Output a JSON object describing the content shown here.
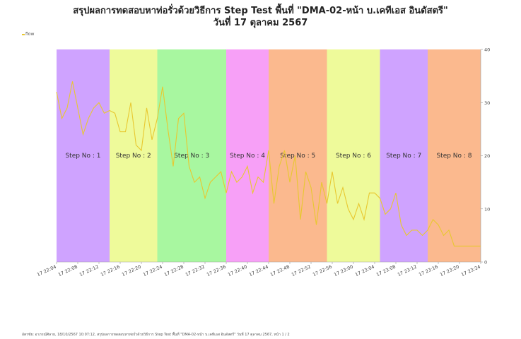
{
  "header": {
    "title_line1": "สรุปผลการทดสอบหาท่อรั่วด้วยวิธีการ Step Test พื้นที่ \"DMA-02-หน้า บ.เคทีเอส อินดัสตรี\"",
    "title_line2": "วันที่ 17 ตุลาคม 2567"
  },
  "footer": {
    "text": "อัตรชัย: อาภรณ์ศิลาย, 18/10/2567 10:07:12, สรุปผลการทดสอบหาท่อรั่วด้วยวิธีการ Step Test พื้นที่ \"DMA-02-หน้า บ.เคทีเอส อินดัสตรี\" วันที่ 17 ตุลาคม 2567, หน้า 1 / 2"
  },
  "colors": {
    "line": "#e8c830",
    "step_violet": "#cfa3ff",
    "step_lime": "#eefa9a",
    "step_green": "#a8f7a0",
    "step_magenta": "#f7a0f7",
    "step_salmon": "#fbb98e",
    "axis_text": "#444444"
  },
  "chart_data": {
    "type": "line",
    "series": [
      {
        "name": "flow",
        "x": [
          "22:04",
          "22:05",
          "22:06",
          "22:07",
          "22:08",
          "22:09",
          "22:10",
          "22:11",
          "22:12",
          "22:13",
          "22:14",
          "22:15",
          "22:16",
          "22:17",
          "22:18",
          "22:19",
          "22:20",
          "22:21",
          "22:22",
          "22:23",
          "22:24",
          "22:25",
          "22:26",
          "22:27",
          "22:28",
          "22:29",
          "22:30",
          "22:31",
          "22:32",
          "22:33",
          "22:34",
          "22:35",
          "22:36",
          "22:37",
          "22:38",
          "22:39",
          "22:40",
          "22:41",
          "22:42",
          "22:43",
          "22:44",
          "22:45",
          "22:46",
          "22:47",
          "22:48",
          "22:49",
          "22:50",
          "22:51",
          "22:52",
          "22:53",
          "22:54",
          "22:55",
          "22:56",
          "22:57",
          "22:58",
          "22:59",
          "23:00",
          "23:01",
          "23:02",
          "23:03",
          "23:04",
          "23:05",
          "23:06",
          "23:07",
          "23:08",
          "23:09",
          "23:10",
          "23:11",
          "23:12",
          "23:13",
          "23:14",
          "23:15",
          "23:16",
          "23:17",
          "23:18",
          "23:19",
          "23:20",
          "23:21",
          "23:22",
          "23:23",
          "23:24"
        ],
        "values": [
          32,
          27,
          29,
          34,
          29,
          24,
          27,
          29,
          30,
          28,
          28.5,
          28,
          24.5,
          24.5,
          30,
          22,
          21,
          29,
          23,
          27,
          33,
          25,
          18,
          27,
          28,
          18,
          15,
          16,
          12,
          15,
          16,
          17,
          13,
          17,
          15,
          16,
          18,
          13,
          16,
          15,
          21,
          11,
          18,
          21,
          15,
          20,
          8,
          17,
          14,
          7,
          15,
          11,
          17,
          11,
          14,
          10,
          8,
          11,
          8,
          13,
          13,
          12,
          9,
          10,
          13,
          7,
          5,
          6,
          6,
          5,
          6,
          8,
          7,
          5,
          6,
          3,
          3,
          3,
          3,
          3,
          3
        ]
      }
    ],
    "steps": [
      {
        "label": "Step No : 1",
        "start": "22:04",
        "end": "22:14",
        "color": "#cfa3ff"
      },
      {
        "label": "Step No : 2",
        "start": "22:14",
        "end": "22:23",
        "color": "#eefa9a"
      },
      {
        "label": "Step No : 3",
        "start": "22:23",
        "end": "22:36",
        "color": "#a8f7a0"
      },
      {
        "label": "Step No : 4",
        "start": "22:36",
        "end": "22:44",
        "color": "#f7a0f7"
      },
      {
        "label": "Step No : 5",
        "start": "22:44",
        "end": "22:55",
        "color": "#fbb98e"
      },
      {
        "label": "Step No : 6",
        "start": "22:55",
        "end": "23:05",
        "color": "#eefa9a"
      },
      {
        "label": "Step No : 7",
        "start": "23:05",
        "end": "23:14",
        "color": "#cfa3ff"
      },
      {
        "label": "Step No : 8",
        "start": "23:14",
        "end": "23:24",
        "color": "#fbb98e"
      }
    ],
    "x_ticks": [
      "17 22:04",
      "17 22:08",
      "17 22:12",
      "17 22:16",
      "17 22:20",
      "17 22:24",
      "17 22:28",
      "17 22:32",
      "17 22:36",
      "17 22:40",
      "17 22:44",
      "17 22:48",
      "17 22:52",
      "17 22:56",
      "17 23:00",
      "17 23:04",
      "17 23:08",
      "17 23:12",
      "17 23:16",
      "17 23:20",
      "17 23:24"
    ],
    "y_ticks": [
      "0",
      "10",
      "20",
      "30",
      "40"
    ],
    "ylim": [
      0,
      40
    ],
    "xlim": [
      "22:04",
      "23:24"
    ],
    "legend": "top-left",
    "grid": false
  }
}
